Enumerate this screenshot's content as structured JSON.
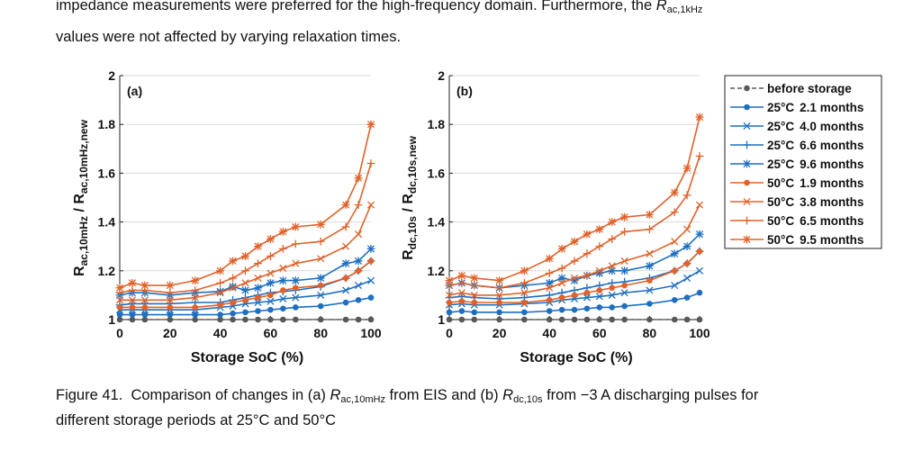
{
  "page_text": {
    "line1_pre": "impedance measurements were preferred for the high-frequency domain. Furthermore, the ",
    "line1_var": "R",
    "line1_sub": "ac,1kHz",
    "line2": "values were not affected by varying relaxation times.",
    "caption_label": "Figure 41.",
    "caption_pre": "Comparison of changes in (a) ",
    "caption_var1": "R",
    "caption_sub1": "ac,10mHz",
    "caption_mid": " from EIS and (b) ",
    "caption_var2": "R",
    "caption_sub2": "dc,10s",
    "caption_post": " from −3 A discharging pulses for",
    "caption_line2": "different storage periods at 25°C and 50°C"
  },
  "colors": {
    "gray": "#595959",
    "blue": "#1f6fc0",
    "orange": "#e0622a",
    "grid": "#d9d9d9"
  },
  "chart_data": [
    {
      "type": "line",
      "panel_label": "(a)",
      "xlabel": "Storage SoC (%)",
      "ylabel_main": "R",
      "ylabel_sub1": "ac,10mHz",
      "ylabel_mid": " / R",
      "ylabel_sub2": "ac,10mHz,new",
      "xlim": [
        0,
        100
      ],
      "ylim": [
        1,
        2
      ],
      "xticks": [
        "0",
        "20",
        "40",
        "60",
        "80",
        "100"
      ],
      "yticks": [
        "1",
        "1.2",
        "1.4",
        "1.6",
        "1.8",
        "2"
      ],
      "grid": "horizontal",
      "x": [
        0,
        5,
        10,
        20,
        30,
        40,
        45,
        50,
        55,
        60,
        65,
        70,
        80,
        90,
        95,
        100
      ],
      "series": [
        {
          "name": "before storage",
          "temp": "",
          "period": "before storage",
          "color": "gray",
          "marker": "dot",
          "dashed": true,
          "values": [
            1.0,
            1.0,
            1.0,
            1.0,
            1.0,
            1.0,
            1.0,
            1.0,
            1.0,
            1.0,
            1.0,
            1.0,
            1.0,
            1.0,
            1.0,
            1.0
          ]
        },
        {
          "name": "25°C 2.1 months",
          "temp": "25°C",
          "period": "2.1 months",
          "color": "blue",
          "marker": "dot",
          "dashed": false,
          "values": [
            1.02,
            1.02,
            1.02,
            1.02,
            1.02,
            1.02,
            1.025,
            1.03,
            1.035,
            1.04,
            1.045,
            1.05,
            1.055,
            1.07,
            1.08,
            1.09
          ]
        },
        {
          "name": "25°C 4.0 months",
          "temp": "25°C",
          "period": "4.0 months",
          "color": "blue",
          "marker": "x",
          "dashed": false,
          "values": [
            1.04,
            1.04,
            1.04,
            1.04,
            1.04,
            1.05,
            1.055,
            1.065,
            1.07,
            1.075,
            1.085,
            1.09,
            1.1,
            1.12,
            1.14,
            1.16
          ]
        },
        {
          "name": "25°C 6.6 months",
          "temp": "25°C",
          "period": "6.6 months",
          "color": "blue",
          "marker": "plus",
          "dashed": false,
          "values": [
            1.06,
            1.065,
            1.065,
            1.065,
            1.07,
            1.07,
            1.08,
            1.09,
            1.1,
            1.11,
            1.115,
            1.12,
            1.135,
            1.17,
            1.2,
            1.24
          ]
        },
        {
          "name": "25°C 9.6 months",
          "temp": "25°C",
          "period": "9.6 months",
          "color": "blue",
          "marker": "star",
          "dashed": false,
          "values": [
            1.1,
            1.11,
            1.11,
            1.1,
            1.11,
            1.115,
            1.135,
            1.12,
            1.13,
            1.15,
            1.16,
            1.16,
            1.17,
            1.23,
            1.24,
            1.29
          ]
        },
        {
          "name": "50°C 1.9 months",
          "temp": "50°C",
          "period": "1.9 months",
          "color": "orange",
          "marker": "dot",
          "dashed": false,
          "values": [
            1.05,
            1.05,
            1.05,
            1.05,
            1.05,
            1.06,
            1.07,
            1.08,
            1.09,
            1.1,
            1.12,
            1.13,
            1.14,
            1.17,
            1.2,
            1.24
          ]
        },
        {
          "name": "50°C 3.8 months",
          "temp": "50°C",
          "period": "3.8 months",
          "color": "orange",
          "marker": "x",
          "dashed": false,
          "values": [
            1.08,
            1.08,
            1.08,
            1.08,
            1.09,
            1.11,
            1.13,
            1.15,
            1.17,
            1.19,
            1.21,
            1.23,
            1.25,
            1.3,
            1.35,
            1.47
          ]
        },
        {
          "name": "50°C 6.5 months",
          "temp": "50°C",
          "period": "6.5 months",
          "color": "orange",
          "marker": "plus",
          "dashed": false,
          "values": [
            1.11,
            1.12,
            1.12,
            1.11,
            1.12,
            1.15,
            1.17,
            1.2,
            1.23,
            1.26,
            1.29,
            1.31,
            1.32,
            1.38,
            1.47,
            1.64
          ]
        },
        {
          "name": "50°C 9.5 months",
          "temp": "50°C",
          "period": "9.5 months",
          "color": "orange",
          "marker": "star",
          "dashed": false,
          "values": [
            1.13,
            1.15,
            1.14,
            1.14,
            1.16,
            1.2,
            1.24,
            1.26,
            1.3,
            1.33,
            1.36,
            1.38,
            1.39,
            1.47,
            1.58,
            1.8
          ]
        }
      ]
    },
    {
      "type": "line",
      "panel_label": "(b)",
      "xlabel": "Storage SoC (%)",
      "ylabel_main": "R",
      "ylabel_sub1": "dc,10s",
      "ylabel_mid": " / R",
      "ylabel_sub2": "dc,10s,new",
      "xlim": [
        0,
        100
      ],
      "ylim": [
        1,
        2
      ],
      "xticks": [
        "0",
        "20",
        "40",
        "60",
        "80",
        "100"
      ],
      "yticks": [
        "1",
        "1.2",
        "1.4",
        "1.6",
        "1.8",
        "2"
      ],
      "grid": "horizontal",
      "x": [
        0,
        5,
        10,
        20,
        30,
        40,
        45,
        50,
        55,
        60,
        65,
        70,
        80,
        90,
        95,
        100
      ],
      "series": [
        {
          "name": "before storage",
          "color": "gray",
          "marker": "dot",
          "dashed": true,
          "values": [
            1.0,
            1.0,
            1.0,
            1.0,
            1.0,
            1.0,
            1.0,
            1.0,
            1.0,
            1.0,
            1.0,
            1.0,
            1.0,
            1.0,
            1.0,
            1.0
          ]
        },
        {
          "name": "25°C 2.1 months",
          "color": "blue",
          "marker": "dot",
          "dashed": false,
          "values": [
            1.03,
            1.035,
            1.03,
            1.03,
            1.03,
            1.035,
            1.04,
            1.04,
            1.045,
            1.05,
            1.05,
            1.055,
            1.065,
            1.08,
            1.09,
            1.11
          ]
        },
        {
          "name": "25°C 4.0 months",
          "color": "blue",
          "marker": "x",
          "dashed": false,
          "values": [
            1.06,
            1.065,
            1.06,
            1.06,
            1.065,
            1.07,
            1.08,
            1.085,
            1.09,
            1.095,
            1.1,
            1.11,
            1.12,
            1.14,
            1.17,
            1.2
          ]
        },
        {
          "name": "25°C 6.6 months",
          "color": "blue",
          "marker": "plus",
          "dashed": false,
          "values": [
            1.09,
            1.095,
            1.09,
            1.085,
            1.09,
            1.1,
            1.11,
            1.12,
            1.13,
            1.14,
            1.15,
            1.155,
            1.17,
            1.2,
            1.23,
            1.28
          ]
        },
        {
          "name": "25°C 9.6 months",
          "color": "blue",
          "marker": "star",
          "dashed": false,
          "values": [
            1.14,
            1.15,
            1.14,
            1.13,
            1.14,
            1.15,
            1.17,
            1.16,
            1.18,
            1.19,
            1.2,
            1.2,
            1.22,
            1.27,
            1.3,
            1.35
          ]
        },
        {
          "name": "50°C 1.9 months",
          "color": "orange",
          "marker": "dot",
          "dashed": false,
          "values": [
            1.07,
            1.075,
            1.07,
            1.07,
            1.07,
            1.08,
            1.09,
            1.1,
            1.11,
            1.12,
            1.13,
            1.14,
            1.16,
            1.2,
            1.23,
            1.28
          ]
        },
        {
          "name": "50°C 3.8 months",
          "color": "orange",
          "marker": "x",
          "dashed": false,
          "values": [
            1.1,
            1.11,
            1.1,
            1.1,
            1.11,
            1.13,
            1.15,
            1.17,
            1.18,
            1.2,
            1.22,
            1.24,
            1.27,
            1.32,
            1.37,
            1.47
          ]
        },
        {
          "name": "50°C 6.5 months",
          "color": "orange",
          "marker": "plus",
          "dashed": false,
          "values": [
            1.14,
            1.15,
            1.14,
            1.13,
            1.15,
            1.19,
            1.21,
            1.24,
            1.27,
            1.3,
            1.33,
            1.36,
            1.37,
            1.44,
            1.51,
            1.67
          ]
        },
        {
          "name": "50°C 9.5 months",
          "color": "orange",
          "marker": "star",
          "dashed": false,
          "values": [
            1.16,
            1.18,
            1.17,
            1.16,
            1.2,
            1.25,
            1.29,
            1.32,
            1.35,
            1.37,
            1.4,
            1.42,
            1.43,
            1.52,
            1.62,
            1.83
          ]
        }
      ]
    }
  ]
}
